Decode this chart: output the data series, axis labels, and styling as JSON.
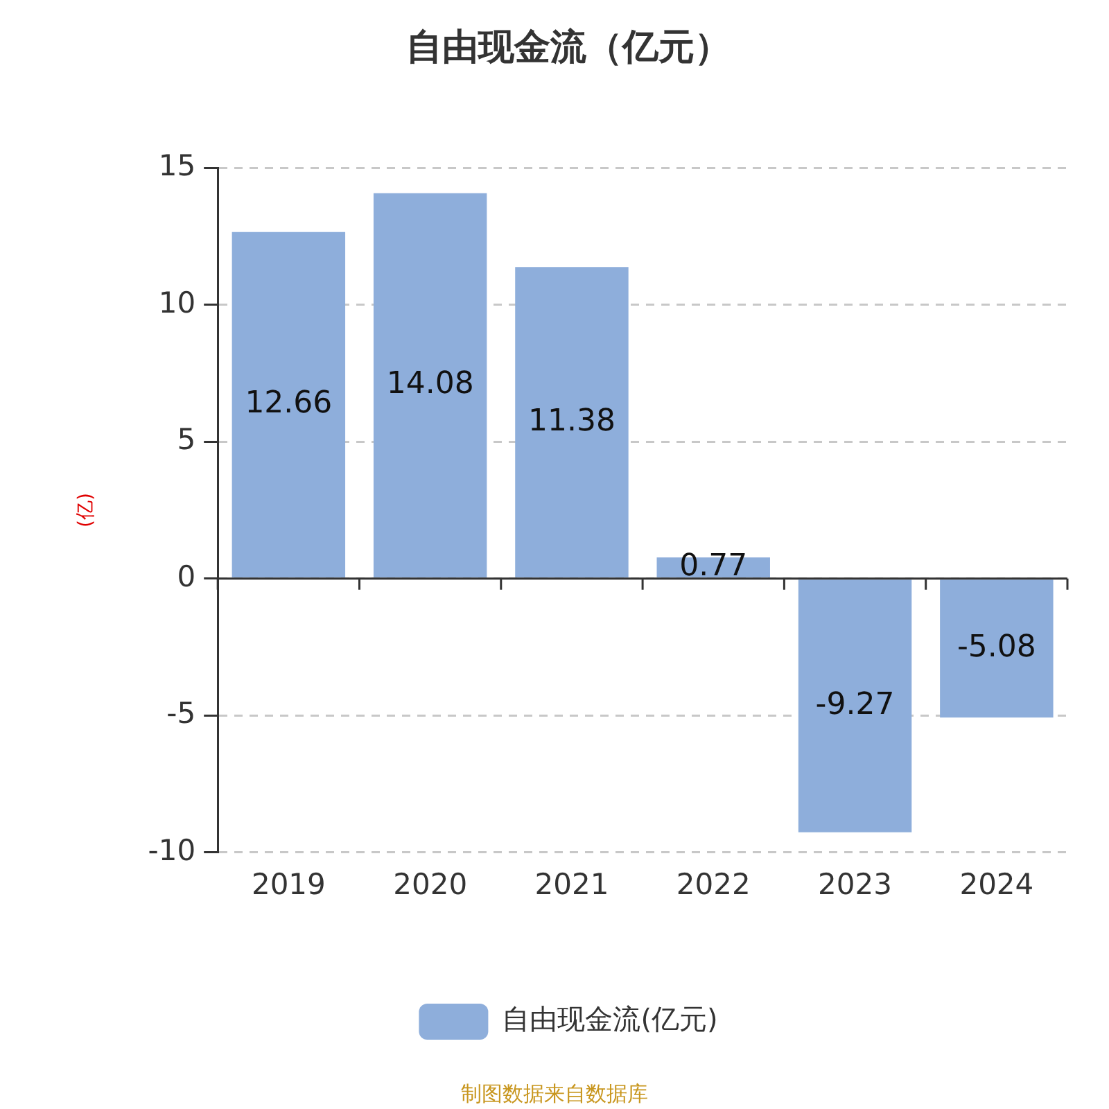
{
  "chart_data": {
    "type": "bar",
    "title": "自由现金流（亿元）",
    "ylabel": "(亿)",
    "categories": [
      "2019",
      "2020",
      "2021",
      "2022",
      "2023",
      "2024"
    ],
    "series": [
      {
        "name": "自由现金流(亿元)",
        "color": "#8eaedb",
        "values": [
          12.66,
          14.08,
          11.38,
          0.77,
          -9.27,
          -5.08
        ]
      }
    ],
    "ylim": [
      -10,
      15
    ],
    "yticks": [
      -10,
      -5,
      0,
      5,
      10,
      15
    ],
    "grid": "y",
    "legend": "bottom",
    "data_labels": true,
    "annotations": [
      "制图数据来自数据库"
    ]
  }
}
